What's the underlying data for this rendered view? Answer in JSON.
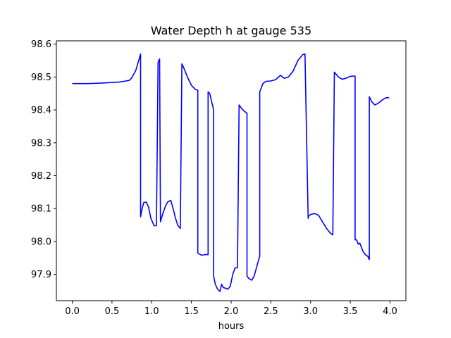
{
  "chart_data": {
    "type": "line",
    "title": "Water Depth h at gauge 535",
    "xlabel": "hours",
    "ylabel": "",
    "xlim": [
      -0.2,
      4.2
    ],
    "ylim": [
      97.82,
      98.61
    ],
    "xticks": [
      0.0,
      0.5,
      1.0,
      1.5,
      2.0,
      2.5,
      3.0,
      3.5,
      4.0
    ],
    "xtick_labels": [
      "0.0",
      "0.5",
      "1.0",
      "1.5",
      "2.0",
      "2.5",
      "3.0",
      "3.5",
      "4.0"
    ],
    "yticks": [
      97.9,
      98.0,
      98.1,
      98.2,
      98.3,
      98.4,
      98.5,
      98.6
    ],
    "ytick_labels": [
      "97.9",
      "98.0",
      "98.1",
      "98.2",
      "98.3",
      "98.4",
      "98.5",
      "98.6"
    ],
    "grid": false,
    "series": [
      {
        "color": "#0000ff",
        "x": [
          0.0,
          0.2,
          0.4,
          0.6,
          0.65,
          0.72,
          0.75,
          0.8,
          0.86,
          0.86,
          0.88,
          0.9,
          0.93,
          0.96,
          0.99,
          1.03,
          1.06,
          1.08,
          1.08,
          1.1,
          1.11,
          1.11,
          1.14,
          1.17,
          1.2,
          1.24,
          1.27,
          1.3,
          1.33,
          1.36,
          1.38,
          1.38,
          1.4,
          1.45,
          1.5,
          1.55,
          1.58,
          1.58,
          1.6,
          1.63,
          1.67,
          1.71,
          1.71,
          1.73,
          1.76,
          1.78,
          1.78,
          1.8,
          1.83,
          1.86,
          1.88,
          1.9,
          1.93,
          1.96,
          1.99,
          2.02,
          2.05,
          2.08,
          2.1,
          2.1,
          2.13,
          2.17,
          2.2,
          2.2,
          2.22,
          2.26,
          2.29,
          2.33,
          2.36,
          2.36,
          2.4,
          2.44,
          2.5,
          2.56,
          2.62,
          2.67,
          2.72,
          2.78,
          2.84,
          2.9,
          2.93,
          2.97,
          2.97,
          3.0,
          3.05,
          3.1,
          3.15,
          3.2,
          3.25,
          3.28,
          3.3,
          3.3,
          3.35,
          3.4,
          3.45,
          3.5,
          3.55,
          3.56,
          3.56,
          3.58,
          3.6,
          3.62,
          3.64,
          3.66,
          3.69,
          3.72,
          3.74,
          3.74,
          3.77,
          3.81,
          3.85,
          3.9,
          3.95,
          3.99
        ],
        "y": [
          98.48,
          98.48,
          98.482,
          98.485,
          98.487,
          98.49,
          98.498,
          98.52,
          98.57,
          98.075,
          98.1,
          98.118,
          98.12,
          98.105,
          98.07,
          98.048,
          98.048,
          98.545,
          98.545,
          98.555,
          98.06,
          98.06,
          98.085,
          98.105,
          98.12,
          98.125,
          98.1,
          98.07,
          98.048,
          98.04,
          98.54,
          98.54,
          98.53,
          98.5,
          98.475,
          98.462,
          98.46,
          97.965,
          97.962,
          97.958,
          97.96,
          97.96,
          98.455,
          98.45,
          98.42,
          98.4,
          97.895,
          97.87,
          97.855,
          97.848,
          97.87,
          97.86,
          97.858,
          97.855,
          97.865,
          97.9,
          97.92,
          97.92,
          98.415,
          98.415,
          98.405,
          98.395,
          98.39,
          97.895,
          97.888,
          97.882,
          97.895,
          97.93,
          97.955,
          98.455,
          98.48,
          98.487,
          98.488,
          98.492,
          98.505,
          98.496,
          98.5,
          98.518,
          98.55,
          98.568,
          98.57,
          98.07,
          98.075,
          98.082,
          98.085,
          98.08,
          98.06,
          98.04,
          98.025,
          98.02,
          98.515,
          98.515,
          98.5,
          98.493,
          98.497,
          98.502,
          98.503,
          98.503,
          98.005,
          98.005,
          97.992,
          97.995,
          97.982,
          97.97,
          97.96,
          97.955,
          97.945,
          98.44,
          98.425,
          98.415,
          98.42,
          98.43,
          98.437,
          98.437
        ]
      }
    ]
  }
}
